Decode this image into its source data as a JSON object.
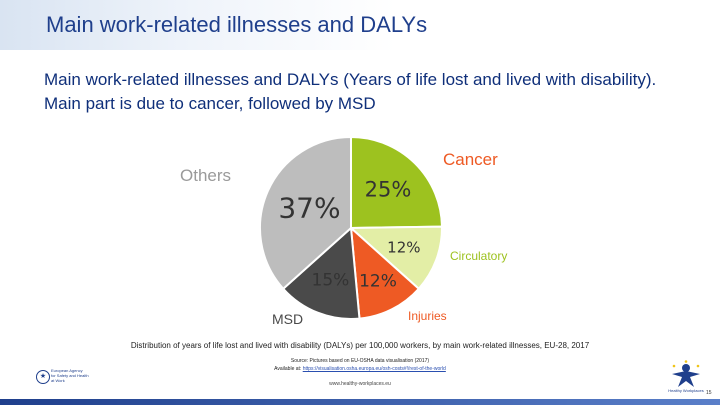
{
  "header": {
    "title": "Main work-related illnesses and DALYs"
  },
  "subtitle": "Main work-related illnesses and DALYs (Years of life lost and lived with disability). Main part is due to cancer, followed by MSD",
  "chart_data": {
    "type": "pie",
    "categories": [
      "Cancer",
      "Circulatory",
      "Injuries",
      "MSD",
      "Others"
    ],
    "values": [
      25,
      12,
      12,
      15,
      37
    ],
    "value_labels": [
      "25%",
      "12%",
      "12%",
      "15%",
      "37%"
    ],
    "colors": {
      "Cancer": "#9dc21f",
      "Circulatory": "#e3eea6",
      "Injuries": "#ee5a24",
      "MSD": "#4a4a4a",
      "Others": "#bdbdbd"
    },
    "label_colors": {
      "Cancer": "#ee5a24",
      "Circulatory": "#9dc21f",
      "Injuries": "#ee5a24",
      "MSD": "#4a4a4a",
      "Others": "#9a9a9a"
    }
  },
  "caption": "Distribution of years of life lost and lived with disability (DALYs) per 100,000 workers, by main work-related illnesses, EU-28, 2017",
  "source": {
    "line1": "Source: Pictures based on EU-OSHA data visualisation (2017)",
    "prefix": "Available at:",
    "link": "https://visualisation.osha.europa.eu/osh-costs#!/rest-of-the-world"
  },
  "footer": {
    "website": "www.healthy-workplaces.eu",
    "agency_logo_lines": [
      "European Agency",
      "for Safety and Health",
      "at Work"
    ],
    "campaign_logo": "Healthy Workplaces",
    "page_number": "15"
  }
}
